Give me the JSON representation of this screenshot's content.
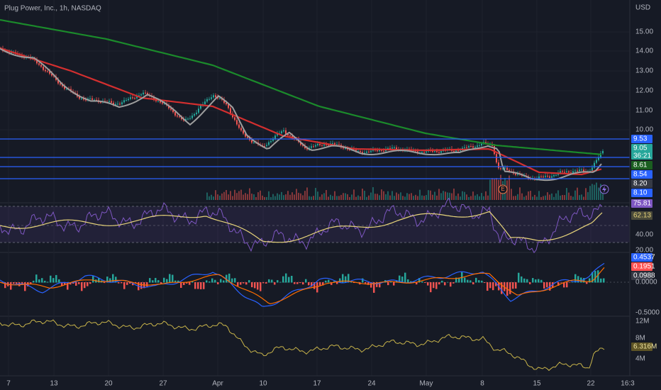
{
  "header": {
    "title": "Plug Power, Inc., 1h, NASDAQ",
    "currency": "USD"
  },
  "price_axis": [
    "15.00",
    "14.00",
    "13.00",
    "12.00",
    "11.00",
    "10.00"
  ],
  "price_tags": [
    {
      "text": "9.53"
    },
    {
      "text": "9.05",
      "countdown": "36:21"
    },
    {
      "text": "8.61"
    },
    {
      "text": "8.54"
    },
    {
      "text": "8.20"
    },
    {
      "text": "8.10"
    }
  ],
  "rsi": {
    "tags": [
      "75.81",
      "62.13"
    ],
    "ticks": [
      "40.00",
      "20.00"
    ]
  },
  "macd": {
    "tags": [
      "0.4537",
      "0.1951",
      "0.0988"
    ],
    "ticks": [
      "0.0000",
      "-0.5000"
    ]
  },
  "obv": {
    "ticks": [
      "12M",
      "8M",
      "4M"
    ],
    "tag": "6.316M"
  },
  "date_axis": [
    "7",
    "13",
    "20",
    "27",
    "Apr",
    "10",
    "17",
    "24",
    "May",
    "8",
    "15",
    "22",
    "16:3"
  ]
}
